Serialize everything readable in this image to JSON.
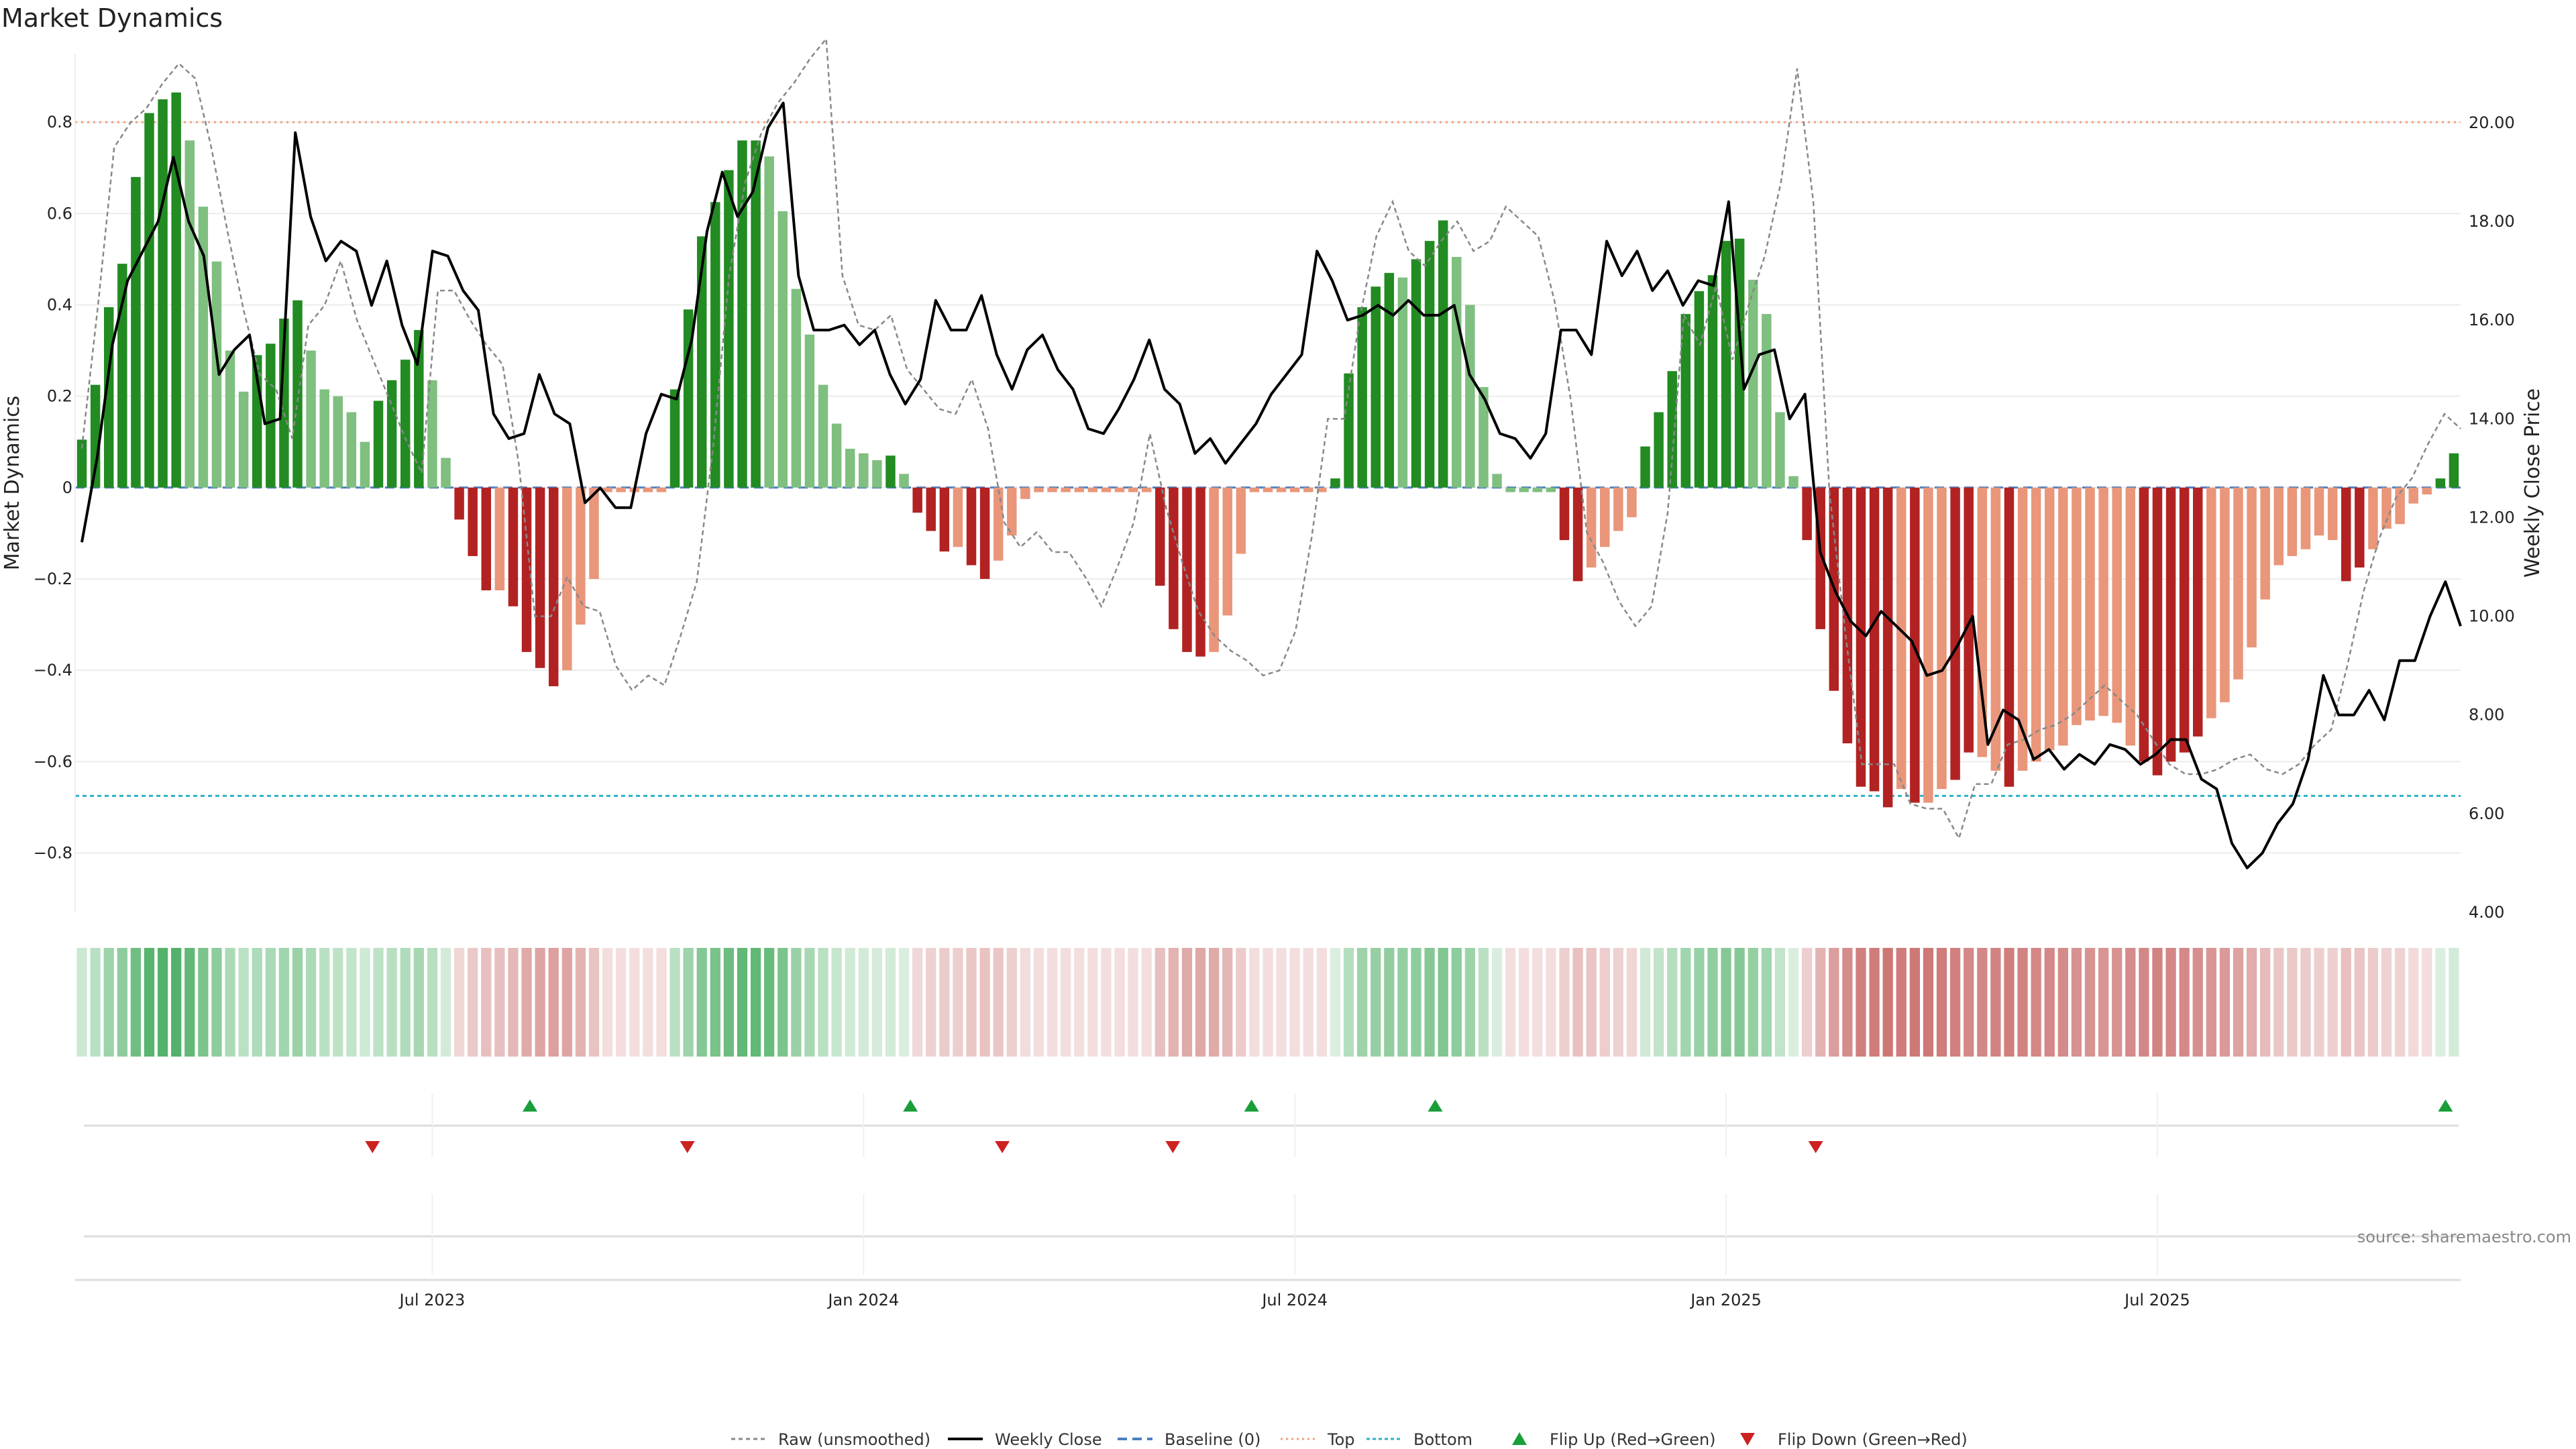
{
  "chart_data": {
    "type": "bar",
    "title": "Market Dynamics",
    "ylabel": "Market Dynamics",
    "y2label": "Weekly Close Price",
    "ylim": [
      -0.93,
      0.95
    ],
    "y2lim": [
      4.0,
      21.4
    ],
    "yticks": [
      {
        "v": 0.8,
        "label": "0.8"
      },
      {
        "v": 0.6,
        "label": "0.6"
      },
      {
        "v": 0.4,
        "label": "0.4"
      },
      {
        "v": 0.2,
        "label": "0.2"
      },
      {
        "v": 0,
        "label": "0"
      },
      {
        "v": -0.2,
        "label": "−0.2"
      },
      {
        "v": -0.4,
        "label": "−0.4"
      },
      {
        "v": -0.6,
        "label": "−0.6"
      },
      {
        "v": -0.8,
        "label": "−0.8"
      }
    ],
    "y2ticks": [
      {
        "v": 20,
        "label": "20.00"
      },
      {
        "v": 18,
        "label": "18.00"
      },
      {
        "v": 16,
        "label": "16.00"
      },
      {
        "v": 14,
        "label": "14.00"
      },
      {
        "v": 12,
        "label": "12.00"
      },
      {
        "v": 10,
        "label": "10.00"
      },
      {
        "v": 8,
        "label": "8.00"
      },
      {
        "v": 6,
        "label": "6.00"
      },
      {
        "v": 4,
        "label": "4.00"
      }
    ],
    "xticks": [
      {
        "week": 26,
        "label": "Jul 2023"
      },
      {
        "week": 58,
        "label": "Jan 2024"
      },
      {
        "week": 90,
        "label": "Jul 2024"
      },
      {
        "week": 122,
        "label": "Jan 2025"
      },
      {
        "week": 154,
        "label": "Jul 2025"
      }
    ],
    "top_level": 0.8,
    "bottom_level": -0.675,
    "baseline": 0,
    "weeks": 177,
    "dynamics": [
      0.105,
      0.225,
      0.395,
      0.49,
      0.68,
      0.82,
      0.85,
      0.865,
      0.76,
      0.615,
      0.495,
      0.3,
      0.21,
      0.29,
      0.315,
      0.37,
      0.41,
      0.3,
      0.215,
      0.2,
      0.165,
      0.1,
      0.19,
      0.235,
      0.28,
      0.345,
      0.235,
      0.065,
      -0.07,
      -0.15,
      -0.225,
      -0.225,
      -0.26,
      -0.36,
      -0.395,
      -0.435,
      -0.4,
      -0.3,
      -0.2,
      -0.01,
      -0.01,
      -0.01,
      -0.01,
      -0.01,
      0.215,
      0.39,
      0.55,
      0.625,
      0.695,
      0.76,
      0.76,
      0.725,
      0.605,
      0.435,
      0.335,
      0.225,
      0.14,
      0.085,
      0.075,
      0.06,
      0.07,
      0.03,
      -0.055,
      -0.095,
      -0.14,
      -0.13,
      -0.17,
      -0.2,
      -0.16,
      -0.105,
      -0.025,
      -0.01,
      -0.01,
      -0.01,
      -0.01,
      -0.01,
      -0.01,
      -0.01,
      -0.01,
      -0.01,
      -0.215,
      -0.31,
      -0.36,
      -0.37,
      -0.36,
      -0.28,
      -0.145,
      -0.01,
      -0.01,
      -0.01,
      -0.01,
      -0.01,
      -0.01,
      0.02,
      0.25,
      0.395,
      0.44,
      0.47,
      0.46,
      0.5,
      0.54,
      0.585,
      0.505,
      0.4,
      0.22,
      0.03,
      -0.01,
      -0.01,
      -0.01,
      -0.01,
      -0.115,
      -0.205,
      -0.175,
      -0.13,
      -0.095,
      -0.065,
      0.09,
      0.165,
      0.255,
      0.38,
      0.43,
      0.465,
      0.54,
      0.545,
      0.455,
      0.38,
      0.165,
      0.025,
      -0.115,
      -0.31,
      -0.445,
      -0.56,
      -0.655,
      -0.665,
      -0.7,
      -0.66,
      -0.69,
      -0.69,
      -0.66,
      -0.64,
      -0.58,
      -0.59,
      -0.62,
      -0.655,
      -0.62,
      -0.6,
      -0.575,
      -0.565,
      -0.52,
      -0.51,
      -0.5,
      -0.515,
      -0.565,
      -0.6,
      -0.63,
      -0.6,
      -0.58,
      -0.545,
      -0.505,
      -0.47,
      -0.42,
      -0.35,
      -0.245,
      -0.17,
      -0.15,
      -0.135,
      -0.105,
      -0.115,
      -0.205,
      -0.175,
      -0.135,
      -0.09,
      -0.08,
      -0.035,
      -0.015,
      0.02,
      0.075
    ],
    "bar_color": [
      "dkG",
      "dkG",
      "dkG",
      "dkG",
      "dkG",
      "dkG",
      "dkG",
      "dkG",
      "ltG",
      "ltG",
      "ltG",
      "ltG",
      "ltG",
      "dkG",
      "dkG",
      "dkG",
      "dkG",
      "ltG",
      "ltG",
      "ltG",
      "ltG",
      "ltG",
      "dkG",
      "dkG",
      "dkG",
      "dkG",
      "ltG",
      "ltG",
      "dkR",
      "dkR",
      "dkR",
      "ltR",
      "dkR",
      "dkR",
      "dkR",
      "dkR",
      "ltR",
      "ltR",
      "ltR",
      "ltR",
      "ltR",
      "ltR",
      "ltR",
      "ltR",
      "dkG",
      "dkG",
      "dkG",
      "dkG",
      "dkG",
      "dkG",
      "dkG",
      "ltG",
      "ltG",
      "ltG",
      "ltG",
      "ltG",
      "ltG",
      "ltG",
      "ltG",
      "ltG",
      "dkG",
      "ltG",
      "dkR",
      "dkR",
      "dkR",
      "ltR",
      "dkR",
      "dkR",
      "ltR",
      "ltR",
      "ltR",
      "ltR",
      "ltR",
      "ltR",
      "ltR",
      "ltR",
      "ltR",
      "ltR",
      "ltR",
      "ltR",
      "dkR",
      "dkR",
      "dkR",
      "dkR",
      "ltR",
      "ltR",
      "ltR",
      "ltR",
      "ltR",
      "ltR",
      "ltR",
      "ltR",
      "ltR",
      "dkG",
      "dkG",
      "dkG",
      "dkG",
      "dkG",
      "ltG",
      "dkG",
      "dkG",
      "dkG",
      "ltG",
      "ltG",
      "ltG",
      "ltG",
      "ltG",
      "ltG",
      "ltG",
      "ltG",
      "dkR",
      "dkR",
      "ltR",
      "ltR",
      "ltR",
      "ltR",
      "dkG",
      "dkG",
      "dkG",
      "dkG",
      "dkG",
      "dkG",
      "dkG",
      "dkG",
      "ltG",
      "ltG",
      "ltG",
      "ltG",
      "dkR",
      "dkR",
      "dkR",
      "dkR",
      "dkR",
      "dkR",
      "dkR",
      "ltR",
      "dkR",
      "ltR",
      "ltR",
      "dkR",
      "dkR",
      "ltR",
      "ltR",
      "dkR",
      "ltR",
      "ltR",
      "ltR",
      "ltR",
      "ltR",
      "ltR",
      "ltR",
      "ltR",
      "ltR",
      "dkR",
      "dkR",
      "dkR",
      "dkR",
      "dkR",
      "ltR",
      "ltR",
      "ltR",
      "ltR",
      "ltR",
      "ltR",
      "ltR",
      "ltR",
      "ltR",
      "ltR",
      "dkR",
      "dkR",
      "ltR",
      "ltR",
      "ltR",
      "ltR",
      "ltR",
      "dkG",
      "dkG"
    ],
    "weekly_close": [
      11.5,
      13.2,
      15.5,
      16.8,
      17.4,
      18.0,
      19.3,
      18.0,
      17.3,
      14.9,
      15.4,
      15.7,
      13.9,
      14.0,
      19.8,
      18.1,
      17.2,
      17.6,
      17.4,
      16.3,
      17.2,
      15.9,
      15.1,
      17.4,
      17.3,
      16.6,
      16.2,
      14.1,
      13.6,
      13.7,
      14.9,
      14.1,
      13.9,
      12.3,
      12.6,
      12.2,
      12.2,
      13.7,
      14.5,
      14.4,
      15.6,
      17.8,
      19.0,
      18.1,
      18.6,
      19.9,
      20.4,
      16.9,
      15.8,
      15.8,
      15.9,
      15.5,
      15.8,
      14.9,
      14.3,
      14.8,
      16.4,
      15.8,
      15.8,
      16.5,
      15.3,
      14.6,
      15.4,
      15.7,
      15.0,
      14.6,
      13.8,
      13.7,
      14.2,
      14.8,
      15.6,
      14.6,
      14.3,
      13.3,
      13.6,
      13.1,
      13.5,
      13.9,
      14.5,
      14.9,
      15.3,
      17.4,
      16.8,
      16.0,
      16.1,
      16.3,
      16.1,
      16.4,
      16.1,
      16.1,
      16.3,
      14.9,
      14.4,
      13.7,
      13.6,
      13.2,
      13.7,
      15.8,
      15.8,
      15.3,
      17.6,
      16.9,
      17.4,
      16.6,
      17.0,
      16.3,
      16.8,
      16.7,
      18.4,
      14.6,
      15.3,
      15.4,
      14.0,
      14.5,
      11.3,
      10.5,
      9.9,
      9.6,
      10.1,
      9.8,
      9.5,
      8.8,
      8.9,
      9.4,
      10.0,
      7.4,
      8.1,
      7.9,
      7.1,
      7.3,
      6.9,
      7.2,
      7.0,
      7.4,
      7.3,
      7.0,
      7.2,
      7.5,
      7.5,
      6.7,
      6.5,
      5.4,
      4.9,
      5.2,
      5.8,
      6.2,
      7.1,
      8.8,
      8.0,
      8.0,
      8.5,
      7.9,
      9.1,
      9.1,
      10.0,
      10.7,
      9.8
    ],
    "raw": [
      13.4,
      16.3,
      19.5,
      20.0,
      20.3,
      20.8,
      21.2,
      20.9,
      19.5,
      17.8,
      16.2,
      14.9,
      14.6,
      13.6,
      15.9,
      16.3,
      17.2,
      16.0,
      15.2,
      14.4,
      13.6,
      12.9,
      16.6,
      16.6,
      16.0,
      15.5,
      15.1,
      13.1,
      10.0,
      10.0,
      10.8,
      10.2,
      10.1,
      9.0,
      8.5,
      8.8,
      8.6,
      9.6,
      10.7,
      13.4,
      16.9,
      18.8,
      19.8,
      20.4,
      20.8,
      21.3,
      21.7,
      16.9,
      15.9,
      15.8,
      16.1,
      15.0,
      14.6,
      14.2,
      14.1,
      14.8,
      13.8,
      11.9,
      11.4,
      11.7,
      11.3,
      11.3,
      10.8,
      10.2,
      11.0,
      11.9,
      13.7,
      12.2,
      11.1,
      10.1,
      9.6,
      9.3,
      9.1,
      8.8,
      8.9,
      9.7,
      11.6,
      14.0,
      14.0,
      16.1,
      17.7,
      18.4,
      17.4,
      17.1,
      17.6,
      18.0,
      17.4,
      17.6,
      18.3,
      18.0,
      17.7,
      16.4,
      14.4,
      11.7,
      11.1,
      10.3,
      9.8,
      10.2,
      12.1,
      16.1,
      15.5,
      16.7,
      15.2,
      16.3,
      17.3,
      18.8,
      21.1,
      18.4,
      12.5,
      9.6,
      7.0,
      7.0,
      7.0,
      6.2,
      6.1,
      6.1,
      5.5,
      6.6,
      6.6,
      7.4,
      7.5,
      7.7,
      7.8,
      8.0,
      8.3,
      8.6,
      8.3,
      8.0,
      7.5,
      7.0,
      6.8,
      6.8,
      6.9,
      7.1,
      7.2,
      6.9,
      6.8,
      7.0,
      7.4,
      7.7,
      9.0,
      10.5,
      11.6,
      12.4,
      12.8,
      13.5,
      14.1,
      13.8
    ],
    "flips_up": [
      34,
      63,
      89,
      103,
      180
    ],
    "flips_down": [
      22,
      46,
      70,
      83,
      132
    ],
    "legend": [
      {
        "key": "raw",
        "label": "Raw (unsmoothed)"
      },
      {
        "key": "close",
        "label": "Weekly Close"
      },
      {
        "key": "baseline",
        "label": "Baseline (0)"
      },
      {
        "key": "top",
        "label": "Top"
      },
      {
        "key": "bottom",
        "label": "Bottom"
      },
      {
        "key": "flip_up",
        "label": "Flip Up (Red→Green)"
      },
      {
        "key": "flip_down",
        "label": "Flip Down (Green→Red)"
      }
    ],
    "colors": {
      "dkG": "#228b22",
      "ltG": "#7fbf7f",
      "dkR": "#b22222",
      "ltR": "#e9967a",
      "close": "#000000",
      "raw": "#888888",
      "baseline": "#4a7fbf",
      "top": "#f0a07a",
      "bottom": "#2bb2c9",
      "flip_up": "#1a9e3a",
      "flip_down": "#cc2222"
    }
  },
  "source": "source: sharemaestro.com"
}
